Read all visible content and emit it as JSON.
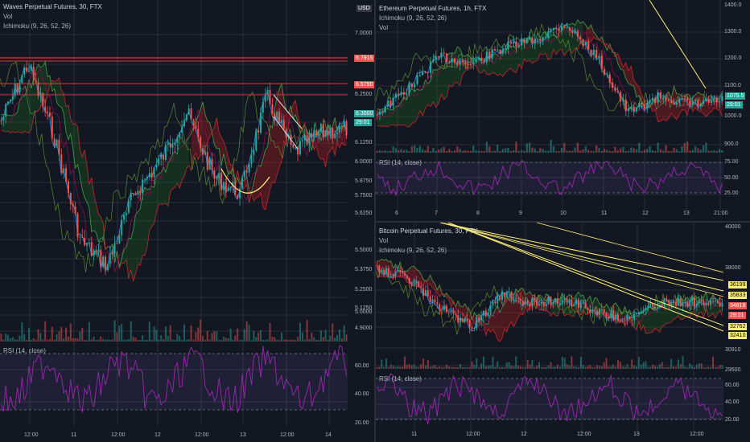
{
  "colors": {
    "background": "#131722",
    "grid": "#2a2e39",
    "up": "#26a69a",
    "down": "#ef5350",
    "rsi": "#9c27b0",
    "cloud_green": "#1b5e20",
    "cloud_red": "#b71c1c",
    "annotation": "#fff176"
  },
  "left_chart": {
    "title": "Waves Perpetual Futures, 30, FTX",
    "vol_label": "Vol",
    "ichimoku_label": "Ichimoku (9, 26, 52, 26)",
    "currency_badge": "USD",
    "rsi_label": "RSI (14, close)",
    "price_ticks": [
      "7.0000",
      "6.7500",
      "6.5000",
      "6.2500",
      "6.1250",
      "6.0000",
      "5.8750",
      "5.7500",
      "5.6250",
      "5.5000",
      "5.3750",
      "5.2500",
      "5.1250",
      "5.0000",
      "4.9000"
    ],
    "price_tags": [
      {
        "text": "6.7915",
        "color": "#ef5350"
      },
      {
        "text": "6.5790",
        "color": "#ef5350"
      },
      {
        "text": "6.3000",
        "color": "#26a69a"
      },
      {
        "text": "29:01",
        "color": "#26a69a"
      }
    ],
    "rsi_ticks": [
      "60.00",
      "40.00",
      "20.00"
    ],
    "time_ticks": [
      "12:00",
      "11",
      "12:00",
      "12",
      "12:00",
      "13",
      "12:00",
      "14"
    ]
  },
  "right_top_chart": {
    "title": "Ethereum Perpetual Futures, 1h, FTX",
    "ichimoku_label": "Ichimoku (9, 26, 52, 26)",
    "vol_label": "Vol",
    "rsi_label": "RSI (14, close)",
    "price_ticks": [
      "1400.0",
      "1300.0",
      "1200.0",
      "1100.0",
      "1000.0",
      "900.0"
    ],
    "price_tags": [
      {
        "text": "1075.5",
        "color": "#26a69a"
      },
      {
        "text": "29:01",
        "color": "#26a69a"
      }
    ],
    "rsi_ticks": [
      "75.00",
      "50.00",
      "25.00"
    ],
    "time_ticks": [
      "6",
      "7",
      "8",
      "9",
      "10",
      "11",
      "12",
      "13",
      "21:00"
    ]
  },
  "right_bottom_chart": {
    "title": "Bitcoin Perpetual Futures, 30, FTX",
    "vol_label": "Vol",
    "ichimoku_label": "Ichimoku (9, 26, 52, 26)",
    "rsi_label": "RSI (14, close)",
    "price_ticks": [
      "40000",
      "38000",
      "30910",
      "29500"
    ],
    "price_tags": [
      {
        "text": "36199",
        "color": "#fff176"
      },
      {
        "text": "35833",
        "color": "#fff176"
      },
      {
        "text": "34818",
        "color": "#ef5350"
      },
      {
        "text": "29:01",
        "color": "#ef5350"
      },
      {
        "text": "32762",
        "color": "#fff176"
      },
      {
        "text": "32410",
        "color": "#fff176"
      }
    ],
    "rsi_ticks": [
      "60.00",
      "40.00",
      "20.00"
    ],
    "time_ticks": [
      "11",
      "12:00",
      "12",
      "12:00",
      "13",
      "12:00"
    ]
  }
}
